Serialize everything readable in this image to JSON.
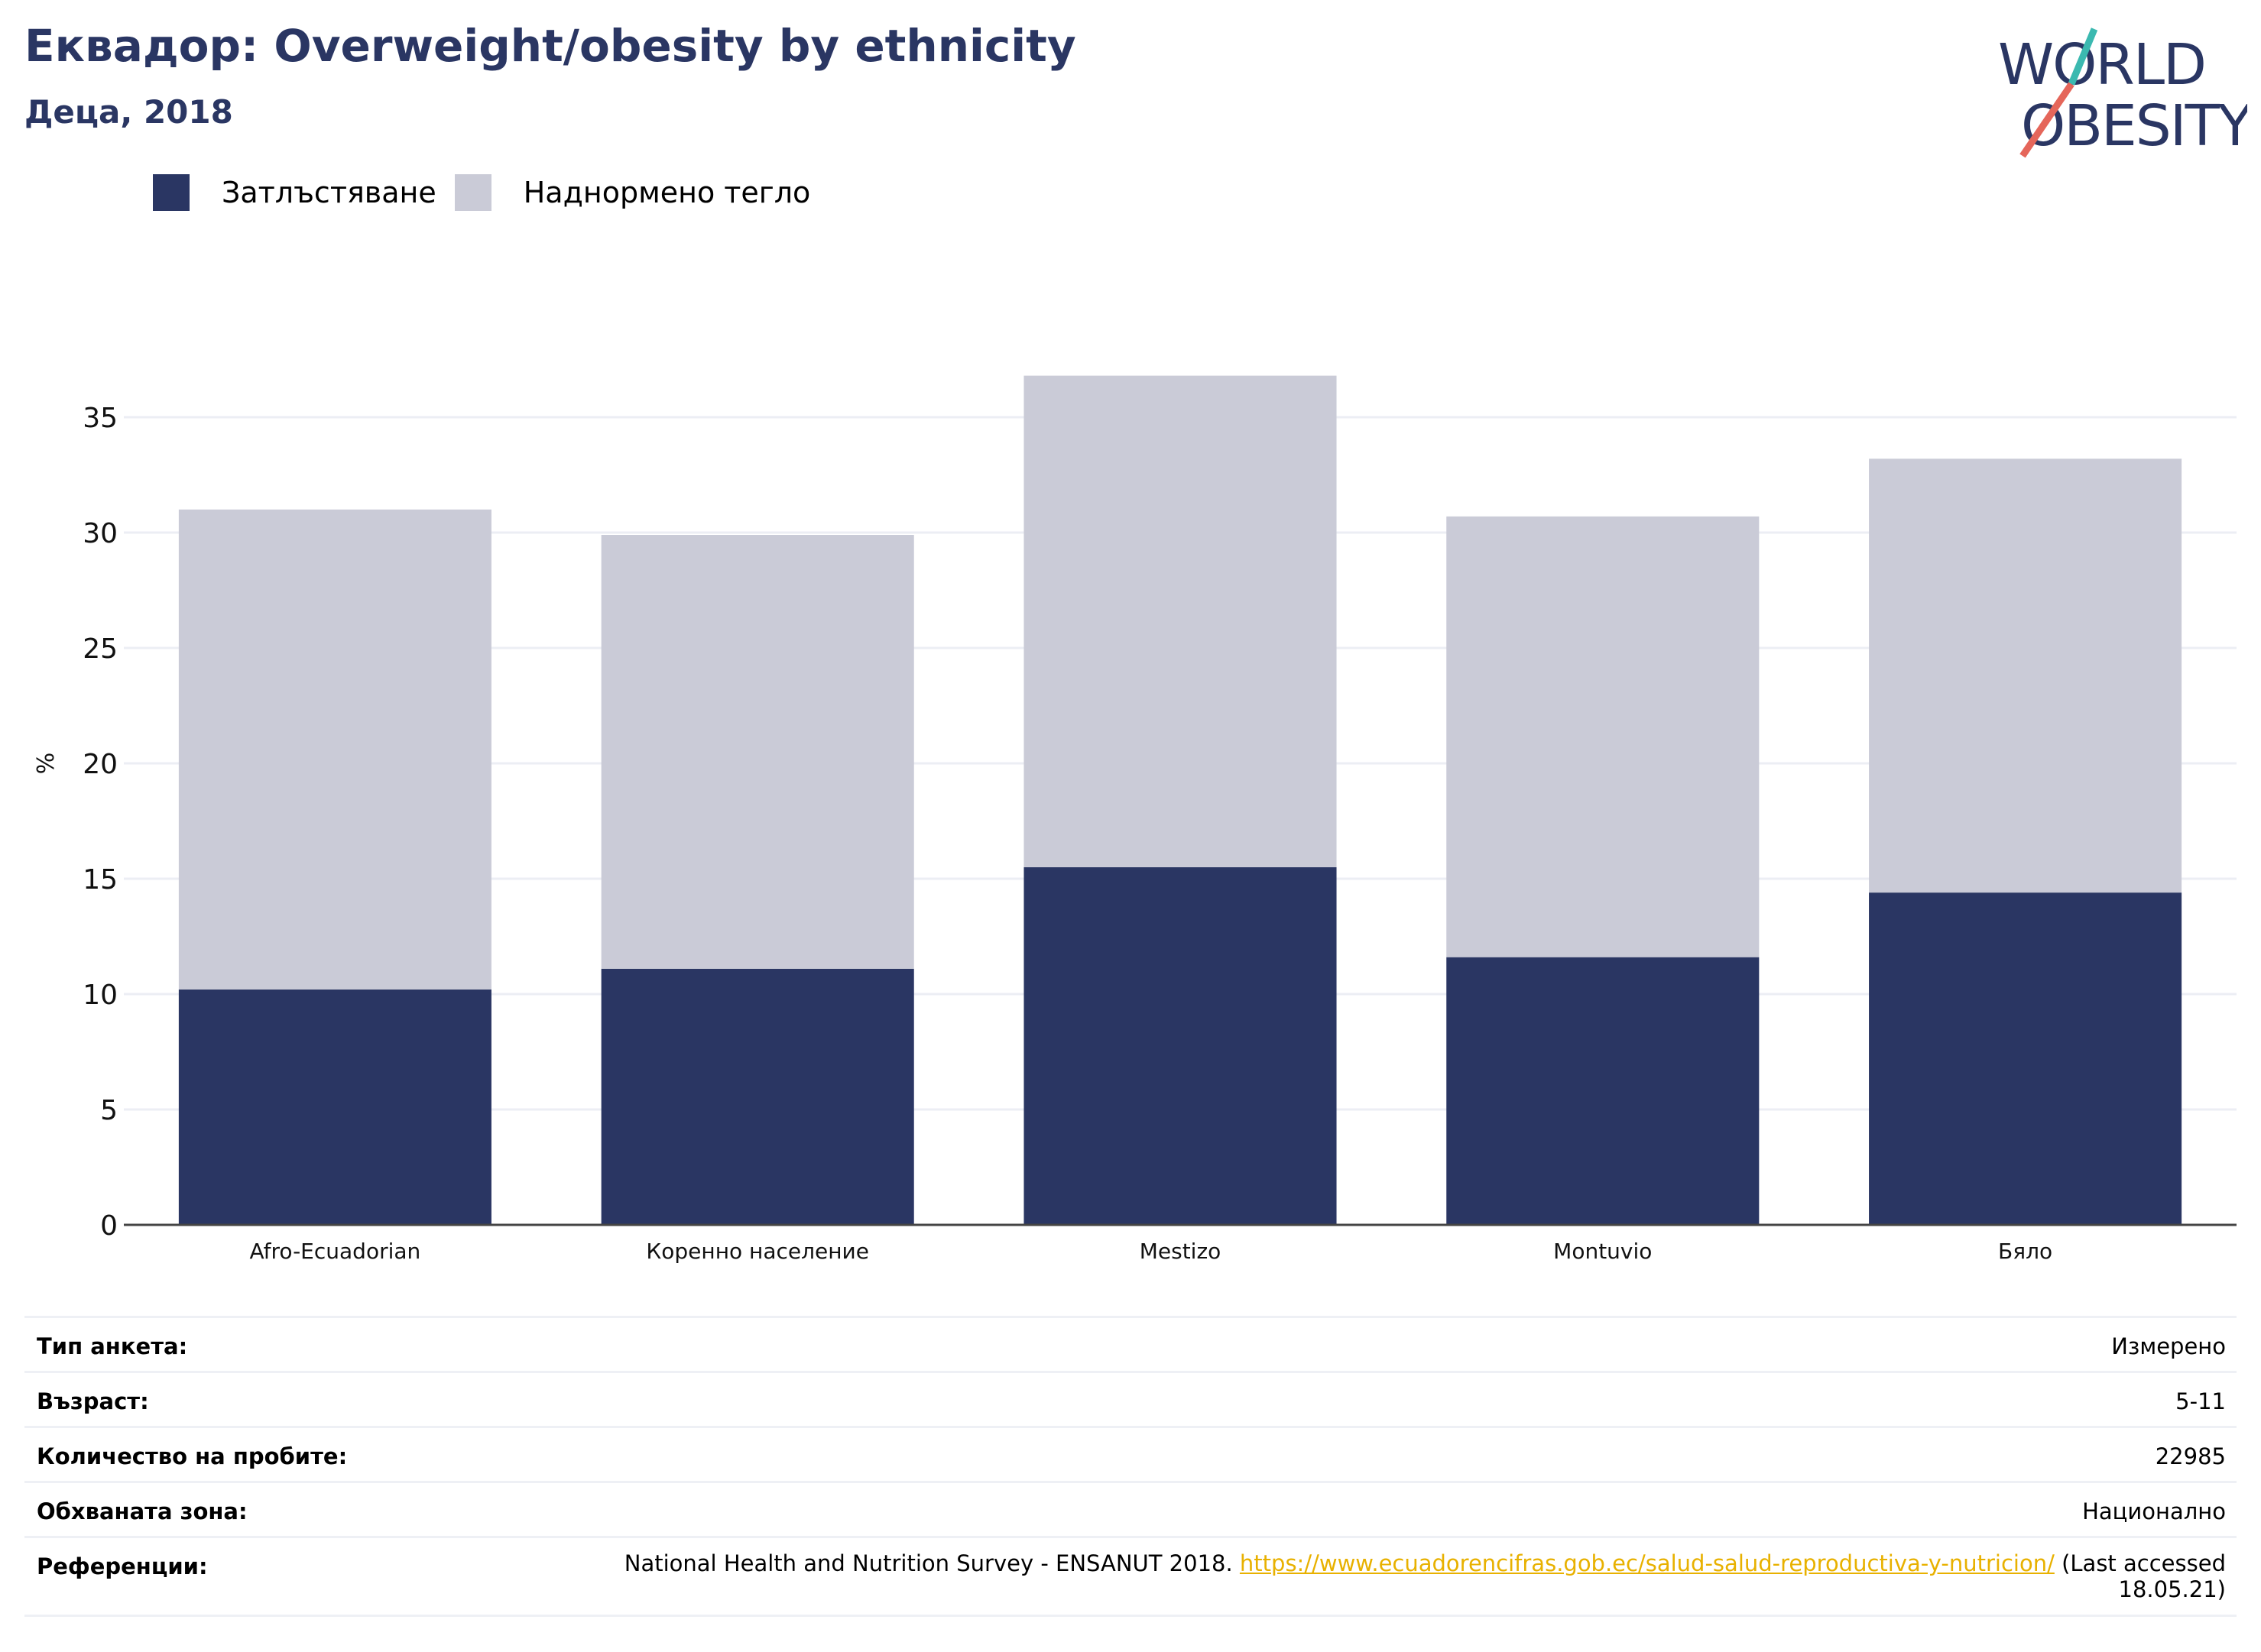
{
  "header": {
    "title": "Еквадор: Overweight/obesity by ethnicity",
    "subtitle": "Деца, 2018"
  },
  "logo": {
    "line1": "WORLD",
    "line2": "OBESITY",
    "colors": {
      "text": "#2a3663",
      "accent_teal": "#3bb9b0",
      "accent_red": "#e5665a"
    }
  },
  "chart_data": {
    "type": "bar",
    "stacked": true,
    "categories": [
      "Afro-Ecuadorian",
      "Коренно население",
      "Mestizo",
      "Montuvio",
      "Бяло"
    ],
    "series": [
      {
        "name": "Затлъстяване",
        "color": "#2a3663",
        "values": [
          10.2,
          11.1,
          15.5,
          11.6,
          14.4
        ]
      },
      {
        "name": "Наднормено тегло",
        "color": "#cacbd7",
        "values": [
          20.8,
          18.8,
          21.3,
          19.1,
          18.8
        ]
      }
    ],
    "ylabel": "%",
    "xlabel": "",
    "ylim": [
      0,
      37
    ],
    "yticks": [
      0,
      5,
      10,
      15,
      20,
      25,
      30,
      35
    ],
    "grid": true,
    "legend_position": "top-left"
  },
  "meta": {
    "rows": [
      {
        "key": "Тип анкета:",
        "value": "Измерено"
      },
      {
        "key": "Възраст:",
        "value": "5-11"
      },
      {
        "key": "Количество на пробите:",
        "value": "22985"
      },
      {
        "key": "Обхваната зона:",
        "value": "Национално"
      }
    ],
    "reference": {
      "key": "Референции:",
      "text_before": "National Health and Nutrition Survey - ENSANUT 2018. ",
      "link": "https://www.ecuadorencifras.gob.ec/salud-salud-reproductiva-y-nutricion/",
      "text_after": " (Last accessed 18.05.21)"
    }
  }
}
